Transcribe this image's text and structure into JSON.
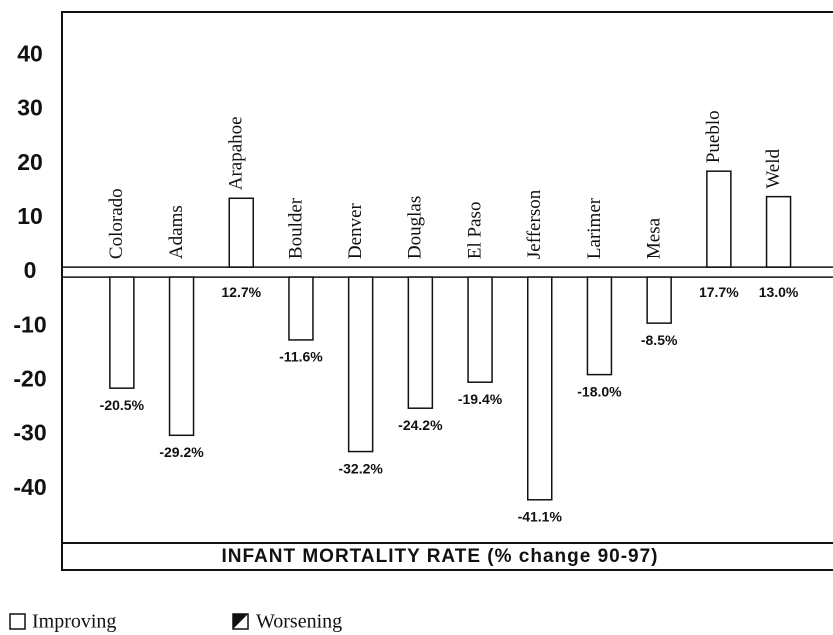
{
  "chart_data": {
    "type": "bar",
    "title": "INFANT MORTALITY RATE (% change 90-97)",
    "categories": [
      "Colorado",
      "Adams",
      "Arapahoe",
      "Boulder",
      "Denver",
      "Douglas",
      "El Paso",
      "Jefferson",
      "Larimer",
      "Mesa",
      "Pueblo",
      "Weld"
    ],
    "values": [
      -20.5,
      -29.2,
      12.7,
      -11.6,
      -32.2,
      -24.2,
      -19.4,
      -41.1,
      -18.0,
      -8.5,
      17.7,
      13.0
    ],
    "value_labels": [
      "-20.5%",
      "-29.2%",
      "12.7%",
      "-11.6%",
      "-32.2%",
      "-24.2%",
      "-19.4%",
      "-41.1%",
      "-18.0%",
      "-8.5%",
      "17.7%",
      "13.0%"
    ],
    "color": "#ffffff",
    "ylim": [
      -50,
      48
    ],
    "yticks": [
      40,
      30,
      20,
      10,
      0,
      -10,
      -20,
      -30,
      -40
    ],
    "legend": [
      {
        "label": "Improving"
      },
      {
        "label": "Worsening"
      }
    ]
  }
}
